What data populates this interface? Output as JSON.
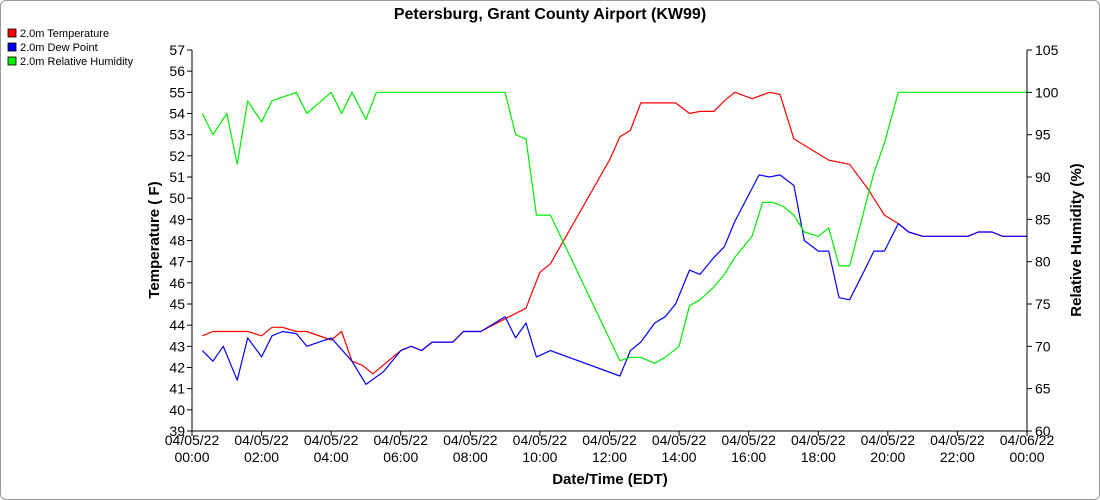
{
  "chart_data": {
    "type": "line",
    "title": "Petersburg, Grant County Airport (KW99)",
    "xlabel": "Date/Time (EDT)",
    "ylabel_left": "Temperature ( F)",
    "ylabel_right": "Relative Humidity (%)",
    "ylim_left": [
      39,
      57
    ],
    "ylim_right": [
      60,
      105
    ],
    "yticks_left": [
      39,
      40,
      41,
      42,
      43,
      44,
      45,
      46,
      47,
      48,
      49,
      50,
      51,
      52,
      53,
      54,
      55,
      56,
      57
    ],
    "yticks_right": [
      60,
      65,
      70,
      75,
      80,
      85,
      90,
      95,
      100,
      105
    ],
    "xlim_hours": [
      0,
      24
    ],
    "xticks": [
      {
        "h": 0,
        "date": "04/05/22",
        "time": "00:00"
      },
      {
        "h": 2,
        "date": "04/05/22",
        "time": "02:00"
      },
      {
        "h": 4,
        "date": "04/05/22",
        "time": "04:00"
      },
      {
        "h": 6,
        "date": "04/05/22",
        "time": "06:00"
      },
      {
        "h": 8,
        "date": "04/05/22",
        "time": "08:00"
      },
      {
        "h": 10,
        "date": "04/05/22",
        "time": "10:00"
      },
      {
        "h": 12,
        "date": "04/05/22",
        "time": "12:00"
      },
      {
        "h": 14,
        "date": "04/05/22",
        "time": "14:00"
      },
      {
        "h": 16,
        "date": "04/05/22",
        "time": "16:00"
      },
      {
        "h": 18,
        "date": "04/05/22",
        "time": "18:00"
      },
      {
        "h": 20,
        "date": "04/05/22",
        "time": "20:00"
      },
      {
        "h": 22,
        "date": "04/05/22",
        "time": "22:00"
      },
      {
        "h": 24,
        "date": "04/06/22",
        "time": "00:00"
      }
    ],
    "grid": false,
    "legend_position": "top-left",
    "series": [
      {
        "name": "2.0m Temperature",
        "color": "#ff0000",
        "axis": "left",
        "points": [
          [
            0.3,
            43.5
          ],
          [
            0.6,
            43.7
          ],
          [
            1.3,
            43.7
          ],
          [
            1.6,
            43.7
          ],
          [
            2.0,
            43.5
          ],
          [
            2.3,
            43.9
          ],
          [
            2.6,
            43.9
          ],
          [
            3.0,
            43.7
          ],
          [
            3.3,
            43.7
          ],
          [
            4.0,
            43.3
          ],
          [
            4.3,
            43.7
          ],
          [
            4.6,
            42.3
          ],
          [
            4.9,
            42.1
          ],
          [
            5.2,
            41.7
          ],
          [
            6.0,
            42.8
          ],
          [
            6.3,
            43.0
          ],
          [
            6.6,
            42.8
          ],
          [
            6.9,
            43.2
          ],
          [
            7.5,
            43.2
          ],
          [
            7.8,
            43.7
          ],
          [
            8.3,
            43.7
          ],
          [
            9.0,
            44.3
          ],
          [
            9.6,
            44.8
          ],
          [
            10.0,
            46.5
          ],
          [
            10.3,
            46.9
          ],
          [
            12.0,
            51.8
          ],
          [
            12.3,
            52.9
          ],
          [
            12.6,
            53.2
          ],
          [
            12.9,
            54.5
          ],
          [
            13.9,
            54.5
          ],
          [
            14.3,
            54.0
          ],
          [
            14.6,
            54.1
          ],
          [
            15.0,
            54.1
          ],
          [
            15.3,
            54.6
          ],
          [
            15.6,
            55.0
          ],
          [
            16.1,
            54.7
          ],
          [
            16.6,
            55.0
          ],
          [
            16.9,
            54.9
          ],
          [
            17.3,
            52.8
          ],
          [
            18.3,
            51.8
          ],
          [
            18.9,
            51.6
          ],
          [
            19.4,
            50.5
          ],
          [
            19.9,
            49.2
          ],
          [
            20.3,
            48.8
          ],
          [
            20.6,
            48.4
          ],
          [
            21.0,
            48.2
          ],
          [
            22.3,
            48.2
          ],
          [
            22.6,
            48.4
          ],
          [
            23.0,
            48.4
          ],
          [
            23.3,
            48.2
          ],
          [
            24.0,
            48.2
          ]
        ]
      },
      {
        "name": "2.0m Dew Point",
        "color": "#0000ff",
        "axis": "left",
        "points": [
          [
            0.3,
            42.8
          ],
          [
            0.6,
            42.3
          ],
          [
            0.9,
            43.0
          ],
          [
            1.3,
            41.4
          ],
          [
            1.6,
            43.4
          ],
          [
            2.0,
            42.5
          ],
          [
            2.3,
            43.5
          ],
          [
            2.6,
            43.7
          ],
          [
            3.0,
            43.6
          ],
          [
            3.3,
            43.0
          ],
          [
            4.0,
            43.4
          ],
          [
            4.6,
            42.3
          ],
          [
            5.0,
            41.2
          ],
          [
            5.5,
            41.8
          ],
          [
            6.0,
            42.8
          ],
          [
            6.3,
            43.0
          ],
          [
            6.6,
            42.8
          ],
          [
            6.9,
            43.2
          ],
          [
            7.5,
            43.2
          ],
          [
            7.8,
            43.7
          ],
          [
            8.3,
            43.7
          ],
          [
            9.0,
            44.4
          ],
          [
            9.3,
            43.4
          ],
          [
            9.6,
            44.1
          ],
          [
            9.9,
            42.5
          ],
          [
            10.3,
            42.8
          ],
          [
            12.3,
            41.6
          ],
          [
            12.6,
            42.8
          ],
          [
            12.9,
            43.2
          ],
          [
            13.3,
            44.1
          ],
          [
            13.6,
            44.4
          ],
          [
            13.9,
            45.0
          ],
          [
            14.3,
            46.6
          ],
          [
            14.6,
            46.4
          ],
          [
            15.0,
            47.2
          ],
          [
            15.3,
            47.7
          ],
          [
            15.6,
            48.9
          ],
          [
            16.3,
            51.1
          ],
          [
            16.6,
            51.0
          ],
          [
            16.9,
            51.1
          ],
          [
            17.3,
            50.6
          ],
          [
            17.6,
            48.0
          ],
          [
            18.0,
            47.5
          ],
          [
            18.3,
            47.5
          ],
          [
            18.6,
            45.3
          ],
          [
            18.9,
            45.2
          ],
          [
            19.3,
            46.5
          ],
          [
            19.6,
            47.5
          ],
          [
            19.9,
            47.5
          ],
          [
            20.3,
            48.8
          ],
          [
            20.6,
            48.4
          ],
          [
            21.0,
            48.2
          ],
          [
            22.3,
            48.2
          ],
          [
            22.6,
            48.4
          ],
          [
            23.0,
            48.4
          ],
          [
            23.3,
            48.2
          ],
          [
            24.0,
            48.2
          ]
        ]
      },
      {
        "name": "2.0m Relative Humidity",
        "color": "#00ee00",
        "axis": "right",
        "points": [
          [
            0.3,
            97.5
          ],
          [
            0.6,
            95.0
          ],
          [
            1.0,
            97.5
          ],
          [
            1.3,
            91.5
          ],
          [
            1.6,
            99.0
          ],
          [
            2.0,
            96.5
          ],
          [
            2.3,
            99.0
          ],
          [
            3.0,
            100.0
          ],
          [
            3.3,
            97.5
          ],
          [
            4.0,
            100.0
          ],
          [
            4.3,
            97.5
          ],
          [
            4.6,
            100.0
          ],
          [
            5.0,
            96.8
          ],
          [
            5.3,
            100.0
          ],
          [
            9.0,
            100.0
          ],
          [
            9.3,
            95.0
          ],
          [
            9.6,
            94.5
          ],
          [
            9.9,
            85.5
          ],
          [
            10.3,
            85.5
          ],
          [
            12.3,
            68.3
          ],
          [
            12.6,
            68.7
          ],
          [
            12.9,
            68.7
          ],
          [
            13.3,
            68.0
          ],
          [
            13.6,
            68.7
          ],
          [
            14.0,
            70.0
          ],
          [
            14.3,
            74.8
          ],
          [
            14.6,
            75.5
          ],
          [
            15.0,
            77.0
          ],
          [
            15.3,
            78.5
          ],
          [
            15.6,
            80.5
          ],
          [
            16.1,
            83.0
          ],
          [
            16.4,
            87.0
          ],
          [
            16.7,
            87.0
          ],
          [
            17.0,
            86.5
          ],
          [
            17.3,
            85.5
          ],
          [
            17.6,
            83.5
          ],
          [
            18.0,
            83.0
          ],
          [
            18.3,
            84.0
          ],
          [
            18.6,
            79.5
          ],
          [
            18.9,
            79.5
          ],
          [
            19.6,
            90.5
          ],
          [
            19.9,
            94.0
          ],
          [
            20.3,
            100.0
          ],
          [
            24.0,
            100.0
          ]
        ]
      }
    ]
  }
}
